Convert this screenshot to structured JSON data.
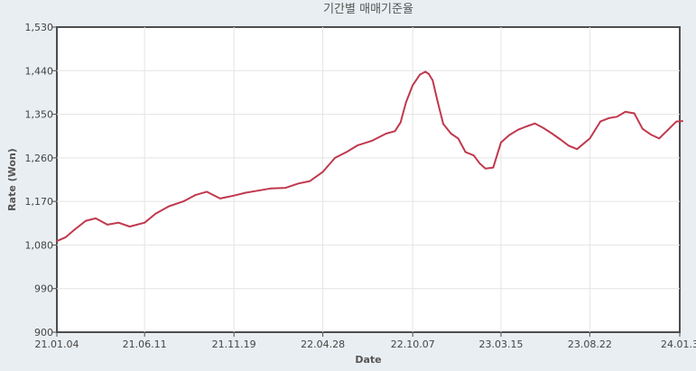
{
  "chart_data": {
    "type": "line",
    "title": "기간별 매매기준율",
    "xlabel": "Date",
    "ylabel": "Rate (Won)",
    "ylim": [
      900,
      1530
    ],
    "y_ticks": [
      "900",
      "990",
      "1,080",
      "1,170",
      "1,260",
      "1,350",
      "1,440",
      "1,530"
    ],
    "x_ticks": [
      "21.01.04",
      "21.06.11",
      "21.11.19",
      "22.04.28",
      "22.10.07",
      "23.03.15",
      "23.08.22",
      "24.01.3"
    ],
    "grid": true,
    "colors": {
      "line": "#c0394e",
      "frame": "#4d4d4d",
      "background": "#e9eef2",
      "plot": "#ffffff"
    },
    "series": [
      {
        "x": [
          "21.01.04",
          "21.01.20",
          "21.02.05",
          "21.02.25",
          "21.03.15",
          "21.04.05",
          "21.04.25",
          "21.05.15",
          "21.06.11",
          "21.07.01",
          "21.07.25",
          "21.08.20",
          "21.09.10",
          "21.10.01",
          "21.10.25",
          "21.11.19",
          "21.12.10",
          "22.01.05",
          "22.01.25",
          "22.02.20",
          "22.03.15",
          "22.04.05",
          "22.04.28",
          "22.05.20",
          "22.06.10",
          "22.06.30",
          "22.07.25",
          "22.08.20",
          "22.09.05",
          "22.09.15",
          "22.09.25",
          "22.10.07",
          "22.10.20",
          "22.10.30",
          "22.11.05",
          "22.11.12",
          "22.11.20",
          "22.12.01",
          "22.12.15",
          "22.12.28",
          "23.01.10",
          "23.01.25",
          "23.02.05",
          "23.02.15",
          "23.03.01",
          "23.03.15",
          "23.03.30",
          "23.04.15",
          "23.04.30",
          "23.05.15",
          "23.05.30",
          "23.06.15",
          "23.06.30",
          "23.07.15",
          "23.07.30",
          "23.08.22",
          "23.09.10",
          "23.09.25",
          "23.10.10",
          "23.10.25",
          "23.11.10",
          "23.11.25",
          "23.12.10",
          "23.12.25",
          "24.01.10",
          "24.01.25",
          "24.02.05"
        ],
        "y": [
          1088,
          1096,
          1112,
          1130,
          1135,
          1122,
          1126,
          1118,
          1126,
          1145,
          1160,
          1170,
          1183,
          1190,
          1176,
          1182,
          1188,
          1193,
          1197,
          1198,
          1207,
          1212,
          1231,
          1260,
          1272,
          1286,
          1295,
          1310,
          1315,
          1333,
          1375,
          1410,
          1432,
          1438,
          1433,
          1420,
          1380,
          1330,
          1310,
          1300,
          1272,
          1265,
          1248,
          1238,
          1240,
          1292,
          1307,
          1318,
          1325,
          1331,
          1322,
          1310,
          1298,
          1285,
          1278,
          1300,
          1335,
          1342,
          1345,
          1355,
          1352,
          1320,
          1308,
          1300,
          1318,
          1335,
          1336
        ]
      }
    ]
  }
}
